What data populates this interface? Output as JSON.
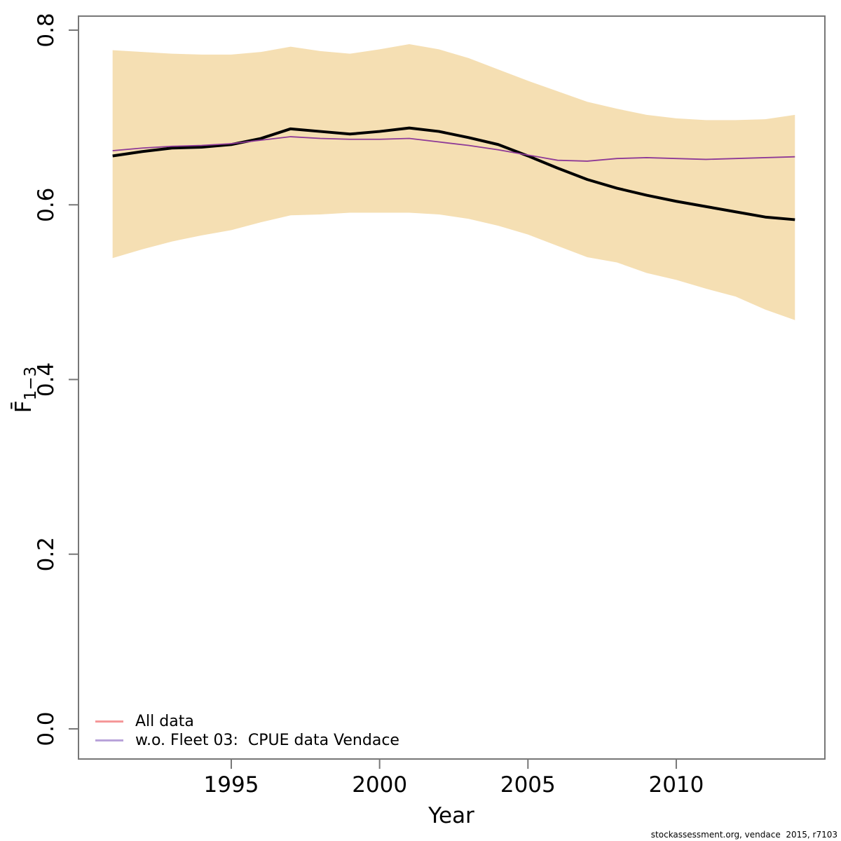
{
  "chart_data": {
    "type": "line",
    "title": "",
    "xlabel": "Year",
    "ylabel": {
      "main": "F̄",
      "sub": "1−3"
    },
    "footer": "stockassessment.org, vendace  2015, r7103",
    "x_years": [
      1991,
      1992,
      1993,
      1994,
      1995,
      1996,
      1997,
      1998,
      1999,
      2000,
      2001,
      2002,
      2003,
      2004,
      2005,
      2006,
      2007,
      2008,
      2009,
      2010,
      2011,
      2012,
      2013,
      2014
    ],
    "xtick_values": [
      1995,
      2000,
      2005,
      2010
    ],
    "xtick_labels": [
      "1995",
      "2000",
      "2005",
      "2010"
    ],
    "ytick_values": [
      0.0,
      0.2,
      0.4,
      0.6,
      0.8
    ],
    "ytick_labels": [
      "0.0",
      "0.2",
      "0.4",
      "0.6",
      "0.8"
    ],
    "xlim": [
      1989.9,
      2015.0
    ],
    "ylim": [
      -0.034,
      0.816
    ],
    "grid": false,
    "band": {
      "name": "confidence-band",
      "color": "#F5DFB3",
      "upper": [
        0.777,
        0.775,
        0.773,
        0.772,
        0.772,
        0.775,
        0.781,
        0.776,
        0.773,
        0.778,
        0.784,
        0.778,
        0.768,
        0.755,
        0.742,
        0.73,
        0.718,
        0.71,
        0.703,
        0.699,
        0.697,
        0.697,
        0.698,
        0.703
      ],
      "lower": [
        0.539,
        0.549,
        0.558,
        0.565,
        0.571,
        0.58,
        0.588,
        0.589,
        0.591,
        0.591,
        0.591,
        0.589,
        0.584,
        0.576,
        0.566,
        0.553,
        0.54,
        0.534,
        0.522,
        0.514,
        0.504,
        0.495,
        0.48,
        0.468
      ]
    },
    "series": [
      {
        "name": "All data",
        "color": "#000000",
        "line_width": 4,
        "values": [
          0.656,
          0.661,
          0.665,
          0.666,
          0.669,
          0.676,
          0.687,
          0.684,
          0.681,
          0.684,
          0.688,
          0.684,
          0.677,
          0.669,
          0.656,
          0.642,
          0.629,
          0.619,
          0.611,
          0.604,
          0.598,
          0.592,
          0.586,
          0.583
        ]
      },
      {
        "name": "w.o. Fleet 03:  CPUE data Vendace",
        "color": "#8E3A97",
        "line_width": 1.8,
        "values": [
          0.662,
          0.665,
          0.667,
          0.668,
          0.67,
          0.674,
          0.678,
          0.676,
          0.675,
          0.675,
          0.676,
          0.672,
          0.668,
          0.663,
          0.657,
          0.651,
          0.65,
          0.653,
          0.654,
          0.653,
          0.652,
          0.653,
          0.654,
          0.655
        ]
      }
    ],
    "legend": {
      "position": "bottom-left",
      "entries": [
        {
          "label": "All data",
          "color": "#F59899"
        },
        {
          "label": "w.o. Fleet 03:  CPUE data Vendace",
          "color": "#B9A3DA"
        }
      ]
    },
    "axis_style": {
      "box_color": "#777777",
      "tick_color": "#777777",
      "label_color": "#000000"
    }
  }
}
